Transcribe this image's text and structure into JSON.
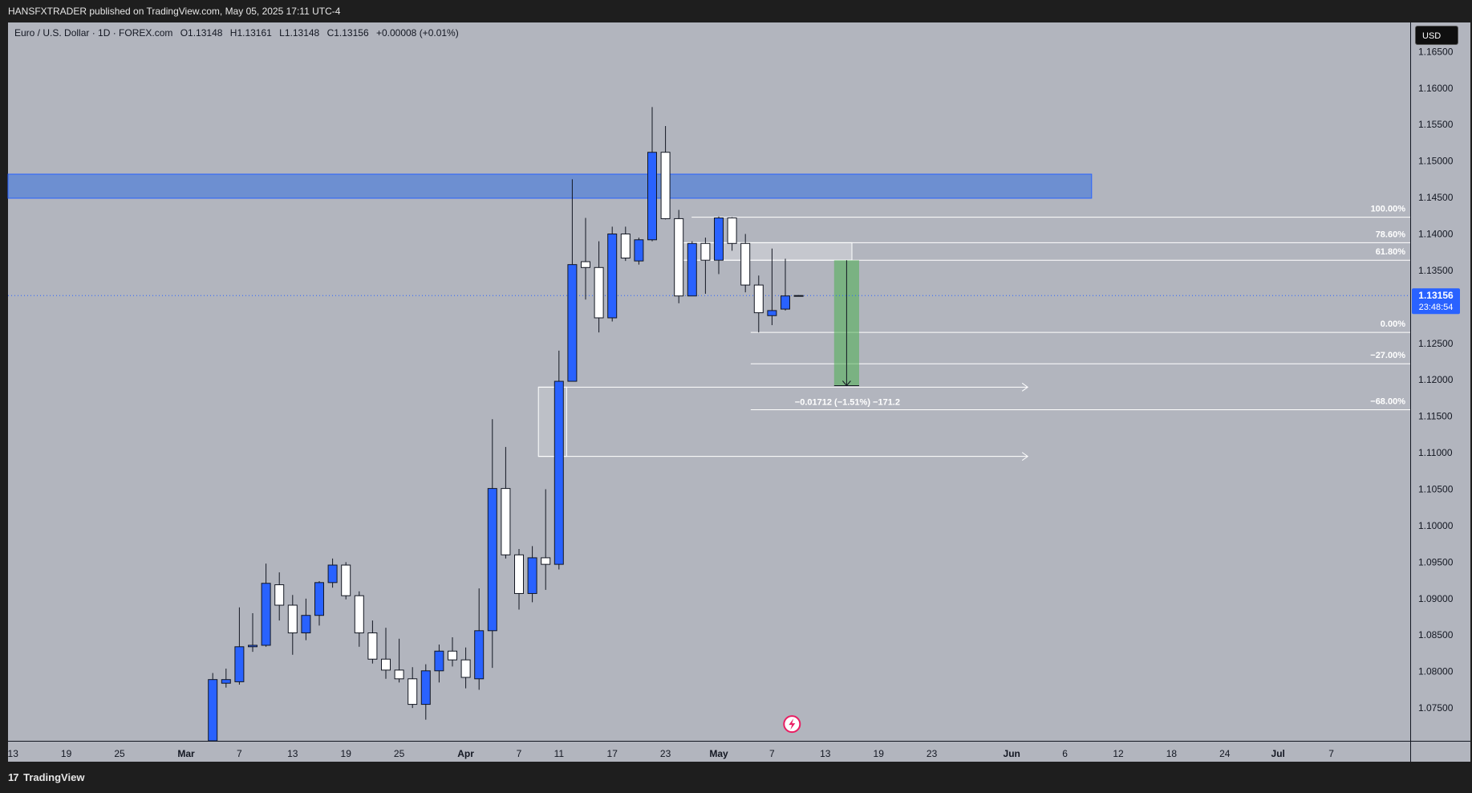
{
  "publisher_line": "HANSFXTRADER published on TradingView.com, May 05, 2025 17:11 UTC-4",
  "brand": {
    "logo_glyph": "17",
    "name": "TradingView"
  },
  "legend": {
    "symbol": "Euro / U.S. Dollar · 1D · FOREX.com",
    "open": "O1.13148",
    "high": "H1.13161",
    "low": "L1.13148",
    "close": "C1.13156",
    "change": "+0.00008 (+0.01%)"
  },
  "currency_button": "USD",
  "colors": {
    "plot_bg": "#b2b5be",
    "up_candle": "#2962ff",
    "down_candle": "#ffffff",
    "wick": "#131722",
    "zone_fill": "#5b86d6",
    "fib_line": "#ffffff",
    "measure_fill": "#4caf50",
    "price_badge": "#2962ff"
  },
  "chart_data": {
    "type": "candlestick",
    "symbol": "EURUSD",
    "interval": "1D",
    "ylim": [
      1.0705,
      1.169
    ],
    "y_ticks": [
      "1.16500",
      "1.16000",
      "1.15500",
      "1.15000",
      "1.14500",
      "1.14000",
      "1.13500",
      "1.13000",
      "1.12500",
      "1.12000",
      "1.11500",
      "1.11000",
      "1.10500",
      "1.10000",
      "1.09500",
      "1.09000",
      "1.08500",
      "1.08000",
      "1.07500"
    ],
    "x_labels": [
      "13",
      "19",
      "25",
      "Mar",
      "7",
      "13",
      "19",
      "25",
      "Apr",
      "7",
      "11",
      "17",
      "23",
      "May",
      "7",
      "13",
      "19",
      "23",
      "Jun",
      "6",
      "12",
      "18",
      "24",
      "Jul",
      "7"
    ],
    "bar_labels_index": [
      -13,
      -9,
      -5,
      0,
      4,
      8,
      12,
      16,
      21,
      25,
      28,
      32,
      36,
      40,
      44,
      48,
      52,
      56,
      62,
      66,
      70,
      74,
      78,
      82,
      86
    ],
    "candles": [
      {
        "i": 2,
        "o": 1.0705,
        "h": 1.0798,
        "l": 1.0705,
        "c": 1.0789
      },
      {
        "i": 3,
        "o": 1.0784,
        "h": 1.0804,
        "l": 1.0778,
        "c": 1.0789
      },
      {
        "i": 4,
        "o": 1.0786,
        "h": 1.0888,
        "l": 1.0782,
        "c": 1.0834
      },
      {
        "i": 5,
        "o": 1.0834,
        "h": 1.088,
        "l": 1.0827,
        "c": 1.0836
      },
      {
        "i": 6,
        "o": 1.0836,
        "h": 1.0948,
        "l": 1.0834,
        "c": 1.0921
      },
      {
        "i": 7,
        "o": 1.0919,
        "h": 1.0936,
        "l": 1.087,
        "c": 1.0891
      },
      {
        "i": 8,
        "o": 1.0891,
        "h": 1.0905,
        "l": 1.0823,
        "c": 1.0853
      },
      {
        "i": 9,
        "o": 1.0853,
        "h": 1.09,
        "l": 1.0843,
        "c": 1.0877
      },
      {
        "i": 10,
        "o": 1.0877,
        "h": 1.0924,
        "l": 1.0863,
        "c": 1.0922
      },
      {
        "i": 11,
        "o": 1.0922,
        "h": 1.0955,
        "l": 1.0915,
        "c": 1.0946
      },
      {
        "i": 12,
        "o": 1.0946,
        "h": 1.095,
        "l": 1.0899,
        "c": 1.0904
      },
      {
        "i": 13,
        "o": 1.0904,
        "h": 1.091,
        "l": 1.0834,
        "c": 1.0853
      },
      {
        "i": 14,
        "o": 1.0853,
        "h": 1.087,
        "l": 1.0811,
        "c": 1.0817
      },
      {
        "i": 15,
        "o": 1.0817,
        "h": 1.086,
        "l": 1.079,
        "c": 1.0802
      },
      {
        "i": 16,
        "o": 1.0802,
        "h": 1.0845,
        "l": 1.0785,
        "c": 1.079
      },
      {
        "i": 17,
        "o": 1.079,
        "h": 1.0806,
        "l": 1.075,
        "c": 1.0755
      },
      {
        "i": 18,
        "o": 1.0755,
        "h": 1.081,
        "l": 1.0734,
        "c": 1.0801
      },
      {
        "i": 19,
        "o": 1.0801,
        "h": 1.0837,
        "l": 1.0785,
        "c": 1.0828
      },
      {
        "i": 20,
        "o": 1.0828,
        "h": 1.0847,
        "l": 1.0807,
        "c": 1.0816
      },
      {
        "i": 21,
        "o": 1.0816,
        "h": 1.0833,
        "l": 1.0777,
        "c": 1.0792
      },
      {
        "i": 22,
        "o": 1.079,
        "h": 1.0914,
        "l": 1.0775,
        "c": 1.0856
      },
      {
        "i": 23,
        "o": 1.0856,
        "h": 1.1146,
        "l": 1.0805,
        "c": 1.1051
      },
      {
        "i": 24,
        "o": 1.1051,
        "h": 1.1108,
        "l": 1.0955,
        "c": 1.096
      },
      {
        "i": 25,
        "o": 1.096,
        "h": 1.0968,
        "l": 1.0885,
        "c": 1.0907
      },
      {
        "i": 26,
        "o": 1.0907,
        "h": 1.0972,
        "l": 1.0895,
        "c": 1.0956
      },
      {
        "i": 27,
        "o": 1.0956,
        "h": 1.105,
        "l": 1.0912,
        "c": 1.0947
      },
      {
        "i": 28,
        "o": 1.0947,
        "h": 1.124,
        "l": 1.094,
        "c": 1.1198
      },
      {
        "i": 29,
        "o": 1.1198,
        "h": 1.1475,
        "l": 1.12,
        "c": 1.1358
      },
      {
        "i": 30,
        "o": 1.1362,
        "h": 1.1422,
        "l": 1.131,
        "c": 1.1354
      },
      {
        "i": 31,
        "o": 1.1354,
        "h": 1.139,
        "l": 1.1265,
        "c": 1.1285
      },
      {
        "i": 32,
        "o": 1.1285,
        "h": 1.141,
        "l": 1.128,
        "c": 1.14
      },
      {
        "i": 33,
        "o": 1.14,
        "h": 1.141,
        "l": 1.1363,
        "c": 1.1367
      },
      {
        "i": 34,
        "o": 1.1363,
        "h": 1.1395,
        "l": 1.1358,
        "c": 1.1392
      },
      {
        "i": 35,
        "o": 1.1392,
        "h": 1.1574,
        "l": 1.139,
        "c": 1.1512
      },
      {
        "i": 36,
        "o": 1.1512,
        "h": 1.1548,
        "l": 1.142,
        "c": 1.1421
      },
      {
        "i": 37,
        "o": 1.1421,
        "h": 1.1433,
        "l": 1.1305,
        "c": 1.1315
      },
      {
        "i": 38,
        "o": 1.1315,
        "h": 1.139,
        "l": 1.1315,
        "c": 1.1387
      },
      {
        "i": 39,
        "o": 1.1387,
        "h": 1.1395,
        "l": 1.1318,
        "c": 1.1364
      },
      {
        "i": 40,
        "o": 1.1364,
        "h": 1.1424,
        "l": 1.1345,
        "c": 1.1422
      },
      {
        "i": 41,
        "o": 1.1422,
        "h": 1.1423,
        "l": 1.1377,
        "c": 1.1387
      },
      {
        "i": 42,
        "o": 1.1387,
        "h": 1.14,
        "l": 1.132,
        "c": 1.133
      },
      {
        "i": 43,
        "o": 1.133,
        "h": 1.1343,
        "l": 1.1265,
        "c": 1.1292
      },
      {
        "i": 44,
        "o": 1.1288,
        "h": 1.138,
        "l": 1.1275,
        "c": 1.1295
      },
      {
        "i": 45,
        "o": 1.1297,
        "h": 1.1366,
        "l": 1.1295,
        "c": 1.1315
      },
      {
        "i": 46,
        "o": 1.13148,
        "h": 1.13161,
        "l": 1.13148,
        "c": 1.13156
      }
    ],
    "resistance_zone": {
      "i_from": -15,
      "i_to": 68,
      "y_top": 1.1482,
      "y_bottom": 1.1449
    },
    "fib_levels": [
      {
        "label": "100.00%",
        "value": 1.1423
      },
      {
        "label": "78.60%",
        "value": 1.1388
      },
      {
        "label": "61.80%",
        "value": 1.1364
      },
      {
        "label": "0.00%",
        "value": 1.1265
      },
      {
        "label": "−27.00%",
        "value": 1.1222
      },
      {
        "label": "−68.00%",
        "value": 1.1159
      }
    ],
    "fib_box": {
      "i_from": 37,
      "i_to": 50,
      "y_top": 1.1388,
      "y_bottom": 1.1364
    },
    "demand_box": {
      "i_from": 27,
      "i_to": 29,
      "y_top": 1.119,
      "y_bottom": 1.1095
    },
    "ray_lines": [
      {
        "i_from": 27,
        "i_to": 62,
        "value": 1.119
      },
      {
        "i_from": 27,
        "i_to": 62,
        "value": 1.1095
      }
    ],
    "measure": {
      "i_from": 48,
      "i_to": 50,
      "y_from": 1.1364,
      "y_to": 1.1192,
      "label": "−0.01712 (−1.51%) −171.2"
    },
    "current_price": {
      "value": 1.13156,
      "label": "1.13156",
      "countdown": "23:48:54"
    }
  }
}
